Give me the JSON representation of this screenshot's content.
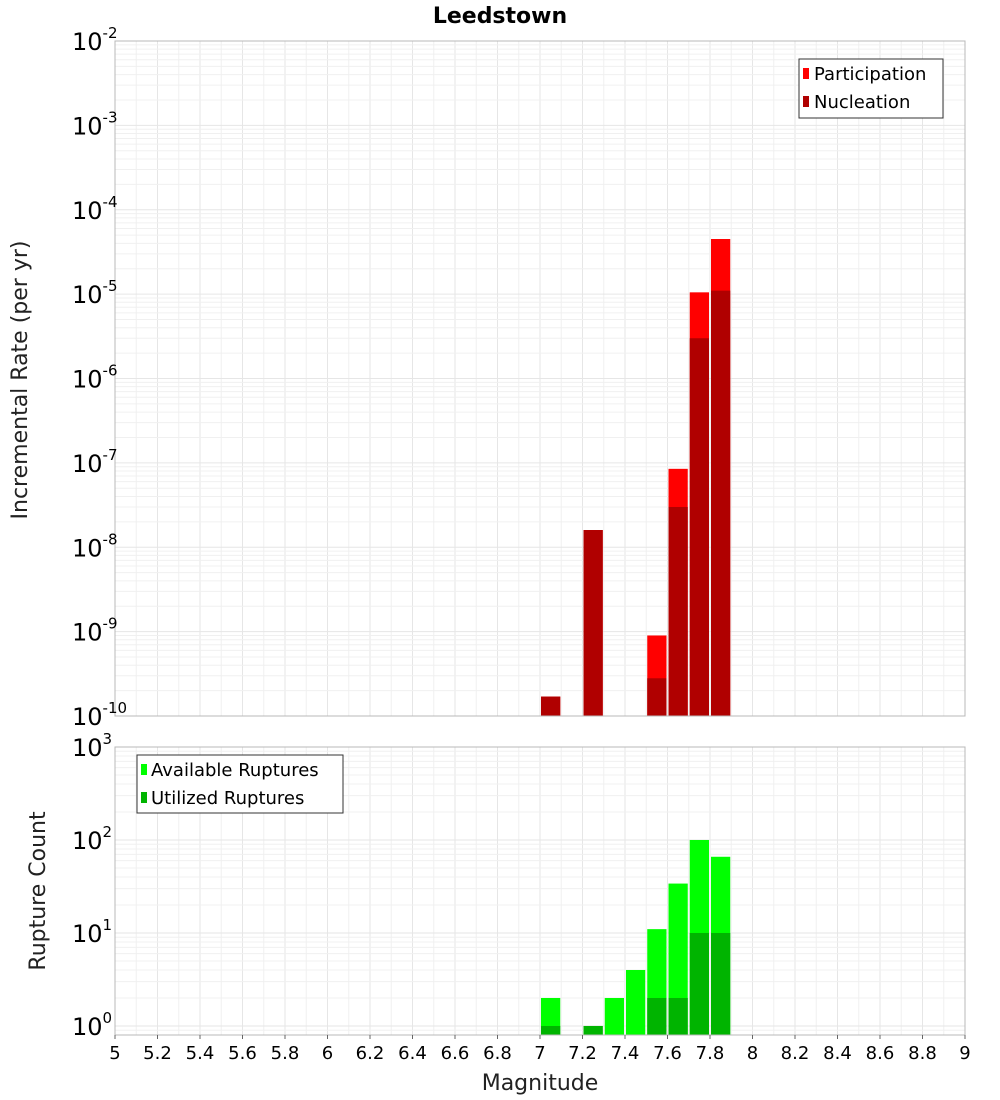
{
  "chart_data": [
    {
      "type": "bar",
      "title": "Leedstown",
      "xlabel": "",
      "ylabel": "Incremental Rate (per yr)",
      "yscale": "log",
      "ylim": [
        1e-10,
        0.01
      ],
      "xlim": [
        5,
        9
      ],
      "bar_width": 0.1,
      "ytick_exponents": [
        -10,
        -9,
        -8,
        -7,
        -6,
        -5,
        -4,
        -3,
        -2
      ],
      "legend_position": "top-right",
      "series": [
        {
          "name": "Participation",
          "color": "#ff0000",
          "x": [
            7.05,
            7.25,
            7.55,
            7.65,
            7.75,
            7.85
          ],
          "values": [
            1.7e-10,
            1.6e-08,
            9e-10,
            8.5e-08,
            1.05e-05,
            4.5e-05
          ]
        },
        {
          "name": "Nucleation",
          "color": "#b00000",
          "x": [
            7.05,
            7.25,
            7.55,
            7.65,
            7.75,
            7.85
          ],
          "values": [
            1.7e-10,
            1.6e-08,
            2.8e-10,
            3e-08,
            3e-06,
            1.1e-05
          ]
        }
      ]
    },
    {
      "type": "bar",
      "title": "",
      "xlabel": "Magnitude",
      "ylabel": "Rupture Count",
      "yscale": "log",
      "ylim": [
        0.8,
        1000
      ],
      "xlim": [
        5,
        9
      ],
      "bar_width": 0.1,
      "ytick_exponents": [
        0,
        1,
        2,
        3
      ],
      "xticks": [
        "5",
        "5.2",
        "5.4",
        "5.6",
        "5.8",
        "6",
        "6.2",
        "6.4",
        "6.6",
        "6.8",
        "7",
        "7.2",
        "7.4",
        "7.6",
        "7.8",
        "8",
        "8.2",
        "8.4",
        "8.6",
        "8.8",
        "9"
      ],
      "legend_position": "top-left",
      "series": [
        {
          "name": "Available Ruptures",
          "color": "#00ff00",
          "x": [
            7.05,
            7.25,
            7.35,
            7.45,
            7.55,
            7.65,
            7.75,
            7.85
          ],
          "values": [
            2,
            1,
            2,
            4,
            11,
            34,
            100,
            66
          ]
        },
        {
          "name": "Utilized Ruptures",
          "color": "#00b400",
          "x": [
            7.05,
            7.25,
            7.35,
            7.45,
            7.55,
            7.65,
            7.75,
            7.85
          ],
          "values": [
            1,
            1,
            0,
            0,
            2,
            2,
            10,
            10
          ]
        }
      ]
    }
  ]
}
